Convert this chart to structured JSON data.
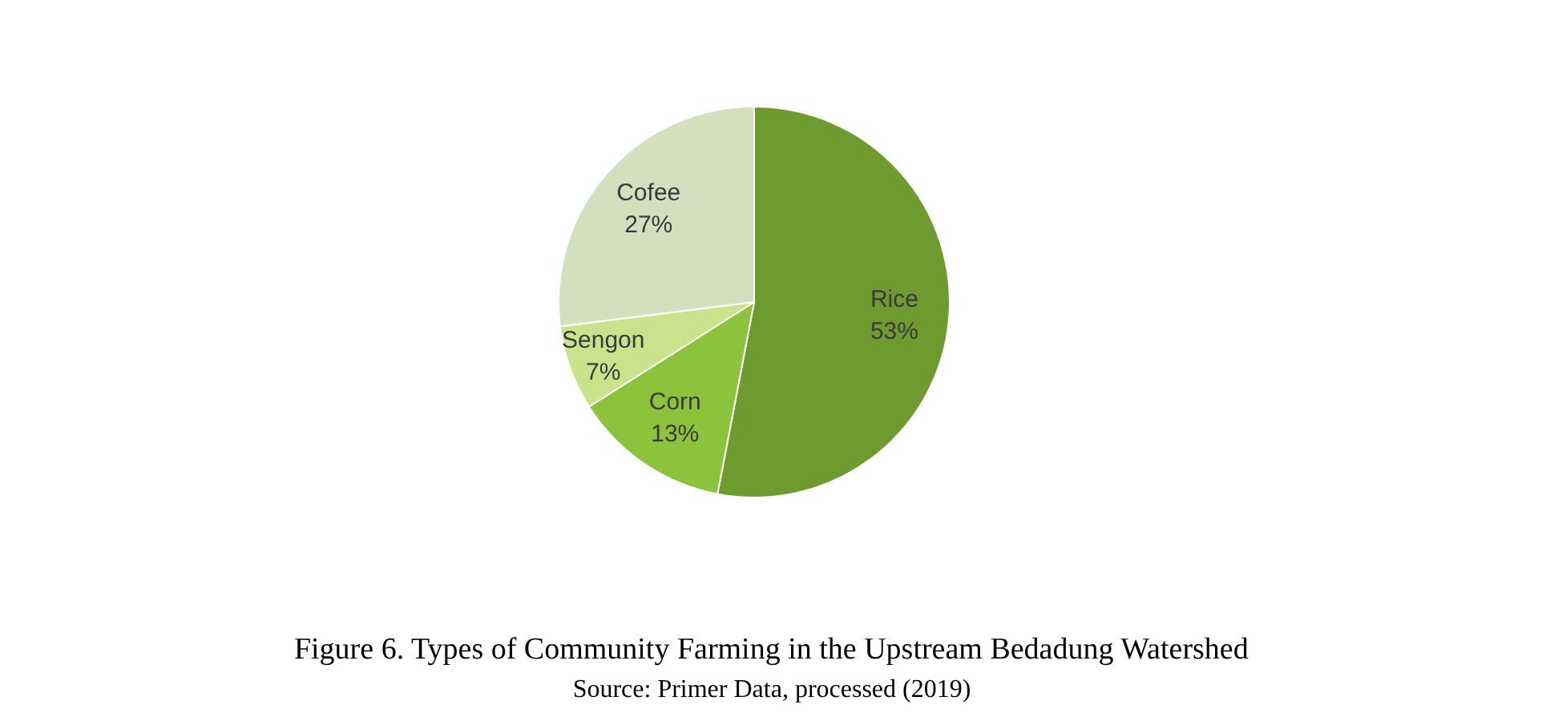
{
  "chart_data": {
    "type": "pie",
    "title": "Figure 6. Types of Community Farming in the Upstream Bedadung Watershed",
    "annotations": [
      "Source: Primer Data, processed (2019)"
    ],
    "categories": [
      "Rice",
      "Corn",
      "Sengon",
      "Cofee"
    ],
    "values": [
      53,
      13,
      7,
      27
    ],
    "value_labels": [
      "53%",
      "13%",
      "7%",
      "27%"
    ],
    "colors": [
      "#6f9a2f",
      "#8cc23c",
      "#c9e28c",
      "#d3dfbf"
    ]
  }
}
